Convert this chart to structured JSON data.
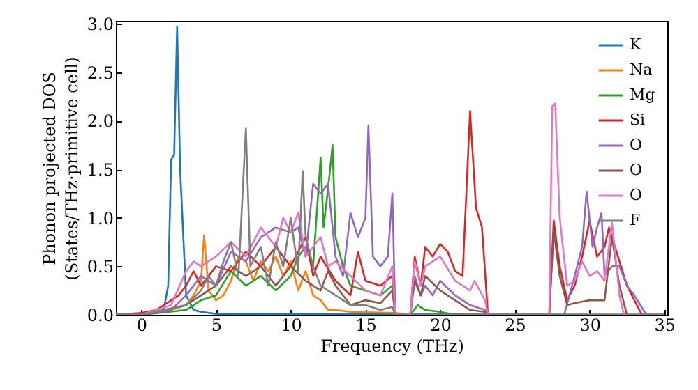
{
  "chart_data": {
    "type": "line",
    "xlabel": "Frequency (THz)",
    "ylabel": "Phonon projected DOS\n(States/THz·primitive cell)",
    "xlim": [
      -1.7,
      35.2
    ],
    "ylim": [
      0,
      3.03
    ],
    "xticks": [
      0,
      5,
      10,
      15,
      20,
      25,
      30,
      35
    ],
    "yticks": [
      {
        "value": 0,
        "label": "0.0"
      },
      {
        "value": 0.5,
        "label": "0.5"
      },
      {
        "value": 1,
        "label": "1.0"
      },
      {
        "value": 1.5,
        "label": "1.5"
      },
      {
        "value": 2,
        "label": "2.0"
      },
      {
        "value": 2.5,
        "label": "2.5"
      },
      {
        "value": 3,
        "label": "3.0"
      }
    ],
    "grid": false,
    "legend": "top right",
    "line_style": "solid",
    "series": [
      {
        "name": "K",
        "color": "#1f77b4",
        "x": [
          -1.7,
          0,
          1,
          1.5,
          1.8,
          2.0,
          2.2,
          2.4,
          2.6,
          3,
          3.5,
          4,
          5,
          8,
          35
        ],
        "values": [
          0,
          0.01,
          0.02,
          0.05,
          0.3,
          1.6,
          1.65,
          2.97,
          1.5,
          0.2,
          0.05,
          0.03,
          0.01,
          0.01,
          0
        ]
      },
      {
        "name": "Na",
        "color": "#ff7f0e",
        "x": [
          -1.7,
          0,
          2,
          3,
          3.5,
          4,
          4.2,
          4.5,
          5,
          5.5,
          6,
          6.5,
          7,
          7.5,
          8,
          8.5,
          9,
          9.5,
          10,
          10.5,
          11,
          11.5,
          12,
          12.5,
          13,
          14,
          17,
          18,
          35
        ],
        "values": [
          0,
          0,
          0.05,
          0.1,
          0.2,
          0.35,
          0.82,
          0.25,
          0.15,
          0.2,
          0.35,
          0.6,
          0.55,
          0.35,
          0.55,
          0.45,
          0.6,
          0.4,
          0.55,
          0.25,
          0.45,
          0.2,
          0.15,
          0.05,
          0.05,
          0.03,
          0.02,
          0,
          0
        ]
      },
      {
        "name": "Mg",
        "color": "#2ca02c",
        "x": [
          -1.7,
          0,
          3,
          4,
          5,
          6,
          7,
          8,
          9,
          10,
          10.5,
          11,
          11.5,
          12,
          12.2,
          12.5,
          12.8,
          13,
          13.5,
          14,
          15,
          16,
          16.8,
          17,
          18,
          18.5,
          19,
          20,
          21,
          35
        ],
        "values": [
          0,
          0,
          0.05,
          0.15,
          0.2,
          0.45,
          0.3,
          0.4,
          0.25,
          0.4,
          0.6,
          0.7,
          0.5,
          1.62,
          0.9,
          1.3,
          1.75,
          0.8,
          0.5,
          0.3,
          0.25,
          0.2,
          0.3,
          0,
          0,
          0.1,
          0.05,
          0.03,
          0,
          0
        ]
      },
      {
        "name": "Si",
        "color": "#d62728",
        "x": [
          -1.7,
          0,
          1,
          2,
          2.5,
          3,
          3.5,
          4,
          5,
          6,
          7,
          8,
          9,
          10,
          11,
          11.5,
          12,
          13,
          14,
          14.5,
          15,
          16,
          16.8,
          17,
          18,
          18.3,
          18.7,
          19,
          19.5,
          20,
          20.5,
          21,
          21.5,
          22,
          22.4,
          22.8,
          23.2,
          27.3,
          27.6,
          28,
          28.5,
          29,
          29.5,
          30,
          30.5,
          31,
          31.3,
          31.7,
          32,
          32.5,
          33,
          33.5,
          35
        ],
        "values": [
          0,
          0.02,
          0.05,
          0.15,
          0.2,
          0.3,
          0.45,
          0.3,
          0.5,
          0.45,
          0.65,
          0.5,
          0.7,
          0.5,
          0.8,
          0.4,
          0.6,
          0.35,
          0.2,
          0.65,
          0.35,
          0.3,
          0.4,
          0,
          0,
          0.6,
          0.3,
          0.7,
          0.6,
          0.73,
          0.65,
          0.45,
          0.4,
          2.1,
          1.1,
          0.9,
          0,
          0,
          0.97,
          0.5,
          0.15,
          0.3,
          0.6,
          0.97,
          0.6,
          0.7,
          0.9,
          0.7,
          0.55,
          0.3,
          0.15,
          0,
          0
        ]
      },
      {
        "name": "O",
        "color": "#9467bd",
        "x": [
          -1.7,
          0,
          2,
          3,
          4,
          5,
          6,
          7,
          8,
          9,
          10,
          10.5,
          11,
          11.5,
          12,
          12.5,
          13,
          13.5,
          14,
          14.5,
          15,
          15.2,
          15.5,
          16,
          16.5,
          16.8,
          17,
          18,
          18.3,
          18.7,
          19,
          19.5,
          20,
          21,
          22,
          23,
          23.2,
          28.3,
          29,
          29.5,
          29.8,
          30.2,
          30.5,
          30.8,
          31,
          31.5,
          32,
          32.5,
          33,
          33.8,
          35
        ],
        "values": [
          0,
          0,
          0.05,
          0.2,
          0.4,
          0.3,
          0.65,
          0.55,
          0.8,
          0.9,
          0.85,
          0.9,
          0.6,
          1.35,
          1.25,
          1.35,
          0.6,
          0.4,
          1.05,
          0.8,
          1.0,
          1.95,
          0.6,
          0.5,
          0.6,
          1.25,
          0,
          0,
          0.4,
          0.2,
          0.3,
          0.2,
          0.35,
          0.2,
          0.1,
          0.05,
          0,
          0,
          0.4,
          0.7,
          1.27,
          0.7,
          0.9,
          1.05,
          0.4,
          0.5,
          0.5,
          0.3,
          0.2,
          0,
          0
        ]
      },
      {
        "name": "O",
        "color": "#8c564b",
        "x": [
          -1.7,
          0,
          3,
          4,
          5,
          6,
          7,
          8,
          9,
          10,
          11,
          12,
          12.5,
          13,
          14,
          15,
          16,
          16.8,
          17,
          18,
          18.3,
          18.7,
          19,
          20,
          21,
          22,
          23,
          23.2,
          27.3,
          27.6,
          28,
          28.5,
          29,
          30,
          31,
          31.5,
          32,
          32.5,
          35
        ],
        "values": [
          0,
          0,
          0.1,
          0.2,
          0.3,
          0.5,
          0.4,
          0.5,
          0.3,
          0.5,
          0.35,
          0.25,
          0.45,
          0.3,
          0.1,
          0.15,
          0.12,
          0.25,
          0,
          0,
          0.35,
          0.2,
          0.4,
          0.25,
          0.15,
          0.05,
          0.03,
          0,
          0,
          0.87,
          0.4,
          0.1,
          0.12,
          0.15,
          0.15,
          0.8,
          0.3,
          0,
          0
        ]
      },
      {
        "name": "O",
        "color": "#e377c2",
        "x": [
          -1.7,
          0,
          1,
          2,
          3,
          3.5,
          4,
          5,
          6,
          7,
          8,
          9,
          9.5,
          10,
          10.5,
          11,
          12,
          12.5,
          13,
          14,
          15,
          16,
          16.8,
          17,
          18,
          18.3,
          18.7,
          19,
          20,
          21,
          22,
          22.3,
          23,
          23.2,
          27.3,
          27.5,
          27.7,
          28,
          28.5,
          29,
          29.5,
          30,
          30.5,
          31,
          31.5,
          32,
          32.3,
          35
        ],
        "values": [
          0,
          0,
          0.05,
          0.1,
          0.45,
          0.55,
          0.5,
          0.6,
          0.75,
          0.6,
          0.9,
          0.7,
          1.0,
          0.85,
          1.05,
          0.6,
          0.8,
          0.5,
          0.55,
          0.4,
          0.25,
          0.2,
          0.5,
          0,
          0,
          0.55,
          0.3,
          0.5,
          0.6,
          0.35,
          0.25,
          0.35,
          0.15,
          0,
          0,
          2.15,
          2.18,
          1.0,
          0.3,
          0.35,
          0.55,
          0.4,
          0.45,
          0.35,
          0.95,
          0.2,
          0,
          0
        ]
      },
      {
        "name": "F",
        "color": "#7f7f7f",
        "x": [
          -1.7,
          0,
          3,
          4,
          4.5,
          5,
          5.5,
          6,
          6.5,
          7,
          7.3,
          8,
          8.5,
          9,
          9.5,
          10,
          10.5,
          10.8,
          11,
          11.5,
          12,
          13,
          14,
          15,
          16,
          16.8,
          17,
          35
        ],
        "values": [
          0,
          0,
          0.1,
          0.25,
          0.4,
          0.3,
          0.55,
          0.75,
          0.4,
          1.92,
          0.5,
          0.7,
          0.3,
          0.75,
          0.5,
          1.0,
          0.45,
          1.48,
          0.8,
          0.5,
          0.3,
          0.2,
          0.1,
          0.1,
          0.05,
          0.08,
          0,
          0
        ]
      }
    ]
  }
}
